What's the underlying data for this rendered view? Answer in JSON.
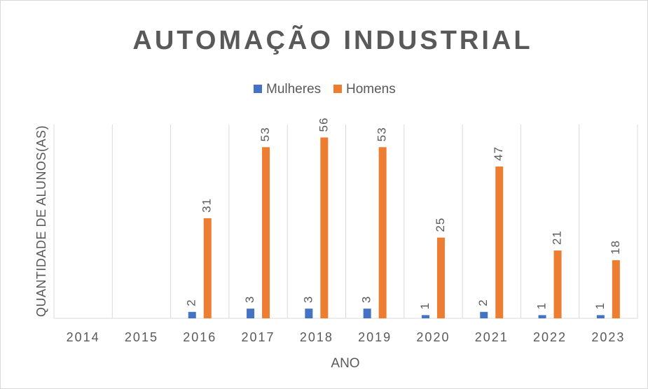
{
  "chart_data": {
    "type": "bar",
    "title": "AUTOMAÇÃO INDUSTRIAL",
    "x_label": "ANO",
    "y_label": "QUANTIDADE DE ALUNOS(AS)",
    "categories": [
      "2014",
      "2015",
      "2016",
      "2017",
      "2018",
      "2019",
      "2020",
      "2021",
      "2022",
      "2023"
    ],
    "series": [
      {
        "name": "Mulheres",
        "color": "#4472c4",
        "values": [
          null,
          null,
          2,
          3,
          3,
          3,
          1,
          2,
          1,
          1
        ]
      },
      {
        "name": "Homens",
        "color": "#ed7d31",
        "values": [
          null,
          null,
          31,
          53,
          56,
          53,
          25,
          47,
          21,
          18
        ]
      }
    ],
    "ylim": [
      0,
      60
    ],
    "grid": "x",
    "legend": "top"
  }
}
